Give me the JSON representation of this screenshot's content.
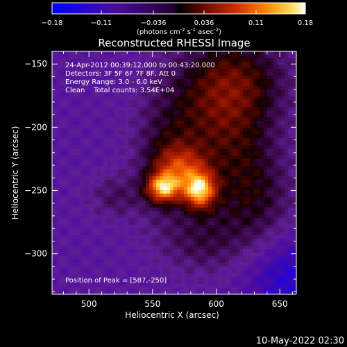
{
  "chart_data": {
    "type": "heatmap",
    "title": "Reconstructed RHESSI Image",
    "colorbar": {
      "ticks": [
        "-0.18",
        "-0.11",
        "-0.036",
        "0.036",
        "0.11",
        "0.18"
      ],
      "range": [
        -0.18,
        0.18
      ],
      "unit_main": "(photons cm",
      "unit_exp1": "-2",
      "unit_mid": " s",
      "unit_exp2": "-1",
      "unit_tail": " asec",
      "unit_exp3": "-2",
      "unit_close": ")",
      "colormap": [
        "#0000ff",
        "#5a0f9e",
        "#000000",
        "#4a0a00",
        "#a81e00",
        "#ff4000",
        "#ffb000",
        "#ffffff"
      ]
    },
    "xlabel": "Heliocentric X (arcsec)",
    "ylabel": "Heliocentric Y (arcsec)",
    "xlim": [
      471,
      663
    ],
    "ylim": [
      -332,
      -140
    ],
    "xticks": [
      500,
      550,
      600,
      650
    ],
    "yticks": [
      -150,
      -200,
      -250,
      -300
    ],
    "annotations": [
      "24-Apr-2012 00:39:12.000 to 00:43:20.000",
      "Detectors: 3F 5F 6F 7F 8F, Att 0",
      "Energy Range: 3.0 - 6.0 keV",
      "Clean    Total counts: 3.54E+04"
    ],
    "peak_label": "Position of Peak = [587,-250]",
    "peak": [
      587,
      -250
    ],
    "timestamp": "10-May-2022 02:30"
  }
}
